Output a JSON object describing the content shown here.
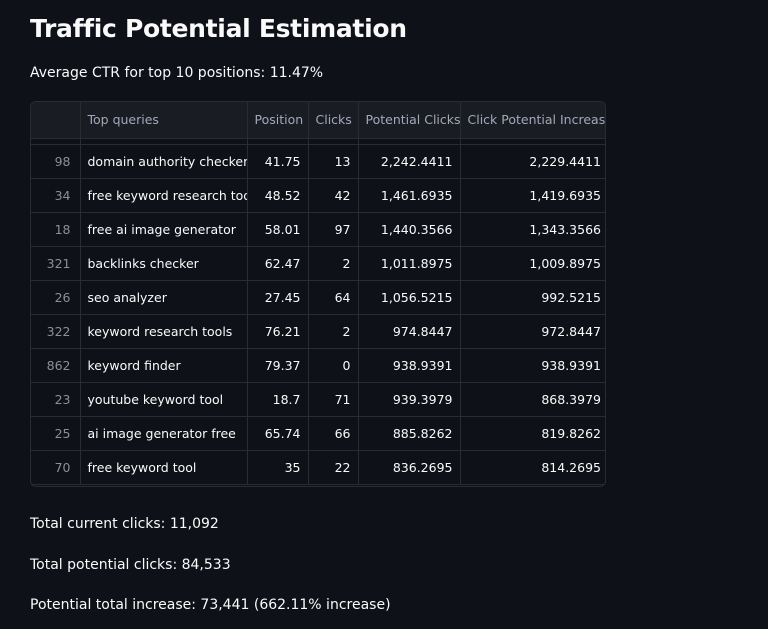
{
  "page": {
    "title": "Traffic Potential Estimation",
    "subtitle": "Average CTR for top 10 positions: 11.47%"
  },
  "table": {
    "columns": [
      "",
      "Top queries",
      "Position",
      "Clicks",
      "Potential Clicks",
      "Click Potential Increase"
    ],
    "rows": [
      {
        "index": "98",
        "query": "domain authority checker",
        "position": "41.75",
        "clicks": "13",
        "potential_clicks": "2,242.4411",
        "increase": "2,229.4411"
      },
      {
        "index": "34",
        "query": "free keyword research tool",
        "position": "48.52",
        "clicks": "42",
        "potential_clicks": "1,461.6935",
        "increase": "1,419.6935"
      },
      {
        "index": "18",
        "query": "free ai image generator",
        "position": "58.01",
        "clicks": "97",
        "potential_clicks": "1,440.3566",
        "increase": "1,343.3566"
      },
      {
        "index": "321",
        "query": "backlinks checker",
        "position": "62.47",
        "clicks": "2",
        "potential_clicks": "1,011.8975",
        "increase": "1,009.8975"
      },
      {
        "index": "26",
        "query": "seo analyzer",
        "position": "27.45",
        "clicks": "64",
        "potential_clicks": "1,056.5215",
        "increase": "992.5215"
      },
      {
        "index": "322",
        "query": "keyword research tools",
        "position": "76.21",
        "clicks": "2",
        "potential_clicks": "974.8447",
        "increase": "972.8447"
      },
      {
        "index": "862",
        "query": "keyword finder",
        "position": "79.37",
        "clicks": "0",
        "potential_clicks": "938.9391",
        "increase": "938.9391"
      },
      {
        "index": "23",
        "query": "youtube keyword tool",
        "position": "18.7",
        "clicks": "71",
        "potential_clicks": "939.3979",
        "increase": "868.3979"
      },
      {
        "index": "25",
        "query": "ai image generator free",
        "position": "65.74",
        "clicks": "66",
        "potential_clicks": "885.8262",
        "increase": "819.8262"
      },
      {
        "index": "70",
        "query": "free keyword tool",
        "position": "35",
        "clicks": "22",
        "potential_clicks": "836.2695",
        "increase": "814.2695"
      }
    ]
  },
  "summary": {
    "current": "Total current clicks: 11,092",
    "potential": "Total potential clicks: 84,533",
    "increase": "Potential total increase: 73,441 (662.11% increase)"
  },
  "colors": {
    "background": "#0e1117",
    "header_bg": "#1a1c24",
    "border": "#2a2c35",
    "text": "#fafafa",
    "muted": "#a3a8b8"
  }
}
